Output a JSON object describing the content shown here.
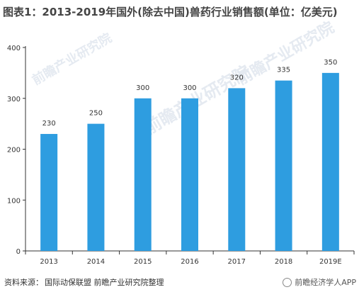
{
  "title": "图表1：2013-2019年国外(除去中国)兽药行业销售额(单位：亿美元)",
  "source": {
    "label": "资料来源：",
    "text": "国际动保联盟 前瞻产业研究院整理"
  },
  "watermark_text": "前瞻经济学人APP",
  "background_watermark": "前瞻产业研究院",
  "colors": {
    "bar": "#2e9de0",
    "axis": "#333333",
    "watermark": "#dfe6ee"
  },
  "chart_data": {
    "type": "bar",
    "title": "图表1：2013-2019年国外(除去中国)兽药行业销售额(单位：亿美元)",
    "xlabel": "",
    "ylabel": "",
    "categories": [
      "2013",
      "2014",
      "2015",
      "2016",
      "2017",
      "2018",
      "2019E"
    ],
    "values": [
      230,
      250,
      300,
      300,
      320,
      335,
      350
    ],
    "ylim": [
      0,
      400
    ],
    "yticks": [
      0,
      100,
      200,
      300,
      400
    ],
    "grid": false,
    "data_labels": true
  }
}
